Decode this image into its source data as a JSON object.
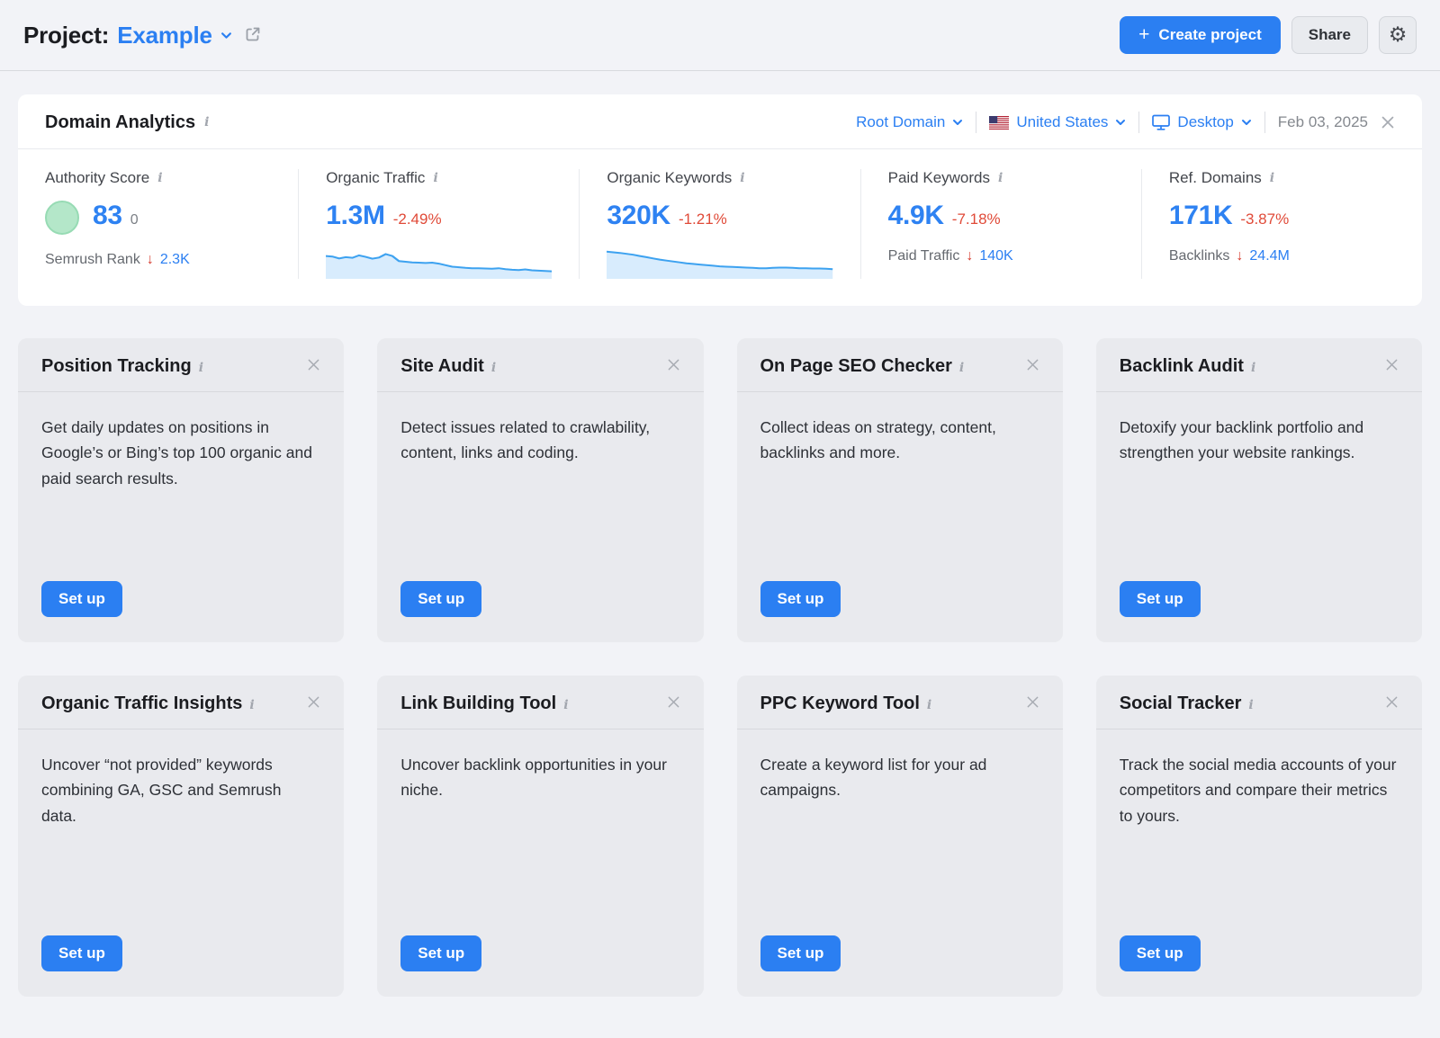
{
  "colors": {
    "accent_blue": "#2b7ff2",
    "negative_red": "#e04a38",
    "score_green": "#b4e7c9",
    "spark_line": "#3da2f0",
    "spark_fill": "#d8ecfd"
  },
  "header": {
    "project_label": "Project:",
    "project_name": "Example",
    "plus_glyph": "+",
    "create_project_label": "Create project",
    "share_label": "Share",
    "gear_glyph": "⚙"
  },
  "panel": {
    "title": "Domain Analytics",
    "info_glyph": "i",
    "filters": {
      "scope": "Root Domain",
      "country": "United States",
      "device": "Desktop",
      "date": "Feb 03, 2025"
    },
    "metrics": [
      {
        "label": "Authority Score",
        "value": "83",
        "value_suffix": "0",
        "footer_label": "Semrush Rank",
        "footer_arrow": "↓",
        "footer_value": "2.3K"
      },
      {
        "label": "Organic Traffic",
        "value": "1.3M",
        "delta": "-2.49%",
        "sparkline": {
          "type": "area",
          "values": [
            66,
            64,
            58,
            62,
            60,
            68,
            63,
            57,
            61,
            72,
            66,
            49,
            47,
            45,
            44,
            43,
            44,
            41,
            36,
            31,
            29,
            27,
            26,
            26,
            25,
            24,
            26,
            23,
            21,
            20,
            22,
            19,
            18,
            17,
            16
          ]
        }
      },
      {
        "label": "Organic Keywords",
        "value": "320K",
        "delta": "-1.21%",
        "sparkline": {
          "type": "area",
          "values": [
            80,
            78,
            76,
            73,
            70,
            66,
            62,
            58,
            54,
            51,
            48,
            45,
            42,
            40,
            38,
            36,
            34,
            32,
            31,
            30,
            29,
            28,
            27,
            26,
            26,
            27,
            28,
            28,
            27,
            26,
            26,
            25,
            25,
            24,
            23
          ]
        }
      },
      {
        "label": "Paid Keywords",
        "value": "4.9K",
        "delta": "-7.18%",
        "footer_label": "Paid Traffic",
        "footer_arrow": "↓",
        "footer_value": "140K"
      },
      {
        "label": "Ref. Domains",
        "value": "171K",
        "delta": "-3.87%",
        "footer_label": "Backlinks",
        "footer_arrow": "↓",
        "footer_value": "24.4M"
      }
    ]
  },
  "tools_common": {
    "setup_label": "Set up",
    "info_glyph": "i"
  },
  "tools": [
    {
      "title": "Position Tracking",
      "description": "Get daily updates on positions in Google’s or Bing’s top 100 organic and paid search results."
    },
    {
      "title": "Site Audit",
      "description": "Detect issues related to crawlability, content, links and coding."
    },
    {
      "title": "On Page SEO Checker",
      "description": "Collect ideas on strategy, content, backlinks and more."
    },
    {
      "title": "Backlink Audit",
      "description": "Detoxify your backlink portfolio and strengthen your website rankings."
    },
    {
      "title": "Organic Traffic Insights",
      "description": "Uncover “not provided” keywords combining GA, GSC and Semrush data."
    },
    {
      "title": "Link Building Tool",
      "description": "Uncover backlink opportunities in your niche."
    },
    {
      "title": "PPC Keyword Tool",
      "description": "Create a keyword list for your ad campaigns."
    },
    {
      "title": "Social Tracker",
      "description": "Track the social media accounts of your competitors and compare their metrics to yours."
    }
  ]
}
